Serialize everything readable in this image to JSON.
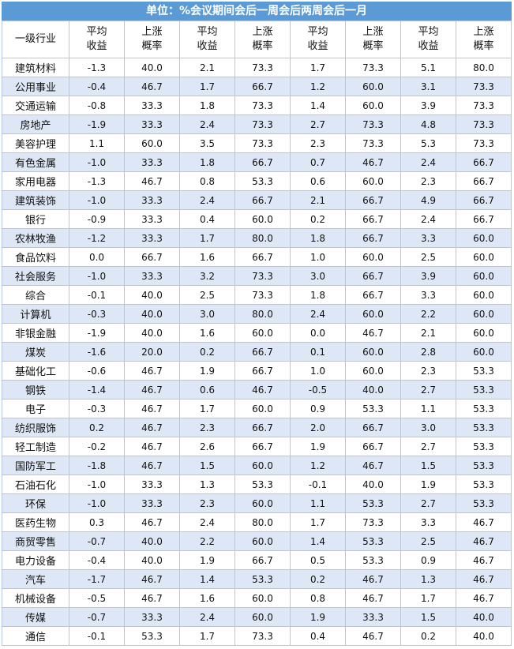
{
  "title": "单位：%会议期间会后一周会后两周会后一月",
  "header": {
    "industry": "一级行业",
    "cols": [
      [
        "平均",
        "收益"
      ],
      [
        "上涨",
        "概率"
      ],
      [
        "平均",
        "收益"
      ],
      [
        "上涨",
        "概率"
      ],
      [
        "平均",
        "收益"
      ],
      [
        "上涨",
        "概率"
      ],
      [
        "平均",
        "收益"
      ],
      [
        "上涨",
        "概率"
      ]
    ]
  },
  "rows": [
    {
      "name": "建筑材料",
      "v": [
        "-1.3",
        "40.0",
        "2.1",
        "73.3",
        "1.7",
        "73.3",
        "5.1",
        "80.0"
      ]
    },
    {
      "name": "公用事业",
      "v": [
        "-0.4",
        "46.7",
        "1.7",
        "66.7",
        "1.2",
        "60.0",
        "3.1",
        "73.3"
      ]
    },
    {
      "name": "交通运输",
      "v": [
        "-0.8",
        "33.3",
        "1.8",
        "73.3",
        "1.4",
        "60.0",
        "3.9",
        "73.3"
      ]
    },
    {
      "name": "房地产",
      "v": [
        "-1.9",
        "33.3",
        "2.4",
        "73.3",
        "2.7",
        "73.3",
        "4.8",
        "73.3"
      ]
    },
    {
      "name": "美容护理",
      "v": [
        "1.1",
        "60.0",
        "3.5",
        "73.3",
        "2.3",
        "73.3",
        "5.3",
        "73.3"
      ]
    },
    {
      "name": "有色金属",
      "v": [
        "-1.0",
        "33.3",
        "1.8",
        "66.7",
        "0.7",
        "46.7",
        "2.4",
        "66.7"
      ]
    },
    {
      "name": "家用电器",
      "v": [
        "-1.3",
        "46.7",
        "0.8",
        "53.3",
        "0.6",
        "60.0",
        "2.3",
        "66.7"
      ]
    },
    {
      "name": "建筑装饰",
      "v": [
        "-1.0",
        "33.3",
        "2.4",
        "66.7",
        "2.1",
        "66.7",
        "4.9",
        "66.7"
      ]
    },
    {
      "name": "银行",
      "v": [
        "-0.9",
        "33.3",
        "0.4",
        "60.0",
        "0.2",
        "66.7",
        "2.4",
        "66.7"
      ]
    },
    {
      "name": "农林牧渔",
      "v": [
        "-1.2",
        "33.3",
        "1.7",
        "80.0",
        "1.8",
        "66.7",
        "3.3",
        "60.0"
      ]
    },
    {
      "name": "食品饮料",
      "v": [
        "0.0",
        "66.7",
        "1.6",
        "66.7",
        "1.0",
        "60.0",
        "2.5",
        "60.0"
      ]
    },
    {
      "name": "社会服务",
      "v": [
        "-1.0",
        "33.3",
        "3.2",
        "73.3",
        "3.0",
        "66.7",
        "3.9",
        "60.0"
      ]
    },
    {
      "name": "综合",
      "v": [
        "-0.1",
        "40.0",
        "2.5",
        "73.3",
        "1.8",
        "66.7",
        "3.3",
        "60.0"
      ]
    },
    {
      "name": "计算机",
      "v": [
        "-0.3",
        "40.0",
        "3.0",
        "80.0",
        "2.4",
        "60.0",
        "2.2",
        "60.0"
      ]
    },
    {
      "name": "非银金融",
      "v": [
        "-1.9",
        "40.0",
        "1.6",
        "60.0",
        "0.0",
        "46.7",
        "2.1",
        "60.0"
      ]
    },
    {
      "name": "煤炭",
      "v": [
        "-1.6",
        "20.0",
        "0.2",
        "66.7",
        "0.1",
        "60.0",
        "2.8",
        "60.0"
      ]
    },
    {
      "name": "基础化工",
      "v": [
        "-0.6",
        "46.7",
        "1.9",
        "66.7",
        "1.0",
        "60.0",
        "2.3",
        "53.3"
      ]
    },
    {
      "name": "钢铁",
      "v": [
        "-1.4",
        "46.7",
        "0.6",
        "46.7",
        "-0.5",
        "40.0",
        "2.7",
        "53.3"
      ]
    },
    {
      "name": "电子",
      "v": [
        "-0.3",
        "46.7",
        "1.7",
        "60.0",
        "0.9",
        "53.3",
        "1.1",
        "53.3"
      ]
    },
    {
      "name": "纺织服饰",
      "v": [
        "0.2",
        "46.7",
        "2.3",
        "66.7",
        "2.0",
        "66.7",
        "3.0",
        "53.3"
      ]
    },
    {
      "name": "轻工制造",
      "v": [
        "-0.2",
        "46.7",
        "2.6",
        "66.7",
        "1.9",
        "66.7",
        "2.7",
        "53.3"
      ]
    },
    {
      "name": "国防军工",
      "v": [
        "-1.8",
        "46.7",
        "1.5",
        "60.0",
        "1.2",
        "46.7",
        "1.5",
        "53.3"
      ]
    },
    {
      "name": "石油石化",
      "v": [
        "-1.0",
        "33.3",
        "1.3",
        "53.3",
        "-0.1",
        "40.0",
        "1.9",
        "53.3"
      ]
    },
    {
      "name": "环保",
      "v": [
        "-1.0",
        "33.3",
        "2.3",
        "60.0",
        "1.1",
        "53.3",
        "2.7",
        "53.3"
      ]
    },
    {
      "name": "医药生物",
      "v": [
        "0.3",
        "46.7",
        "2.4",
        "80.0",
        "1.7",
        "73.3",
        "3.3",
        "46.7"
      ]
    },
    {
      "name": "商贸零售",
      "v": [
        "-0.7",
        "40.0",
        "2.2",
        "60.0",
        "1.4",
        "53.3",
        "2.5",
        "46.7"
      ]
    },
    {
      "name": "电力设备",
      "v": [
        "-0.4",
        "40.0",
        "1.9",
        "66.7",
        "0.5",
        "53.3",
        "0.9",
        "46.7"
      ]
    },
    {
      "name": "汽车",
      "v": [
        "-1.7",
        "46.7",
        "1.4",
        "53.3",
        "0.2",
        "46.7",
        "1.3",
        "46.7"
      ]
    },
    {
      "name": "机械设备",
      "v": [
        "-0.5",
        "46.7",
        "1.6",
        "60.0",
        "0.8",
        "46.7",
        "1.7",
        "46.7"
      ]
    },
    {
      "name": "传媒",
      "v": [
        "-0.7",
        "33.3",
        "2.4",
        "60.0",
        "1.9",
        "33.3",
        "1.5",
        "40.0"
      ]
    },
    {
      "name": "通信",
      "v": [
        "-0.1",
        "53.3",
        "1.7",
        "73.3",
        "0.4",
        "46.7",
        "0.2",
        "40.0"
      ]
    }
  ],
  "colors": {
    "header_bg": "#5b9bd5",
    "alt_row": "#dde7f5",
    "border": "#b4c6e7"
  }
}
